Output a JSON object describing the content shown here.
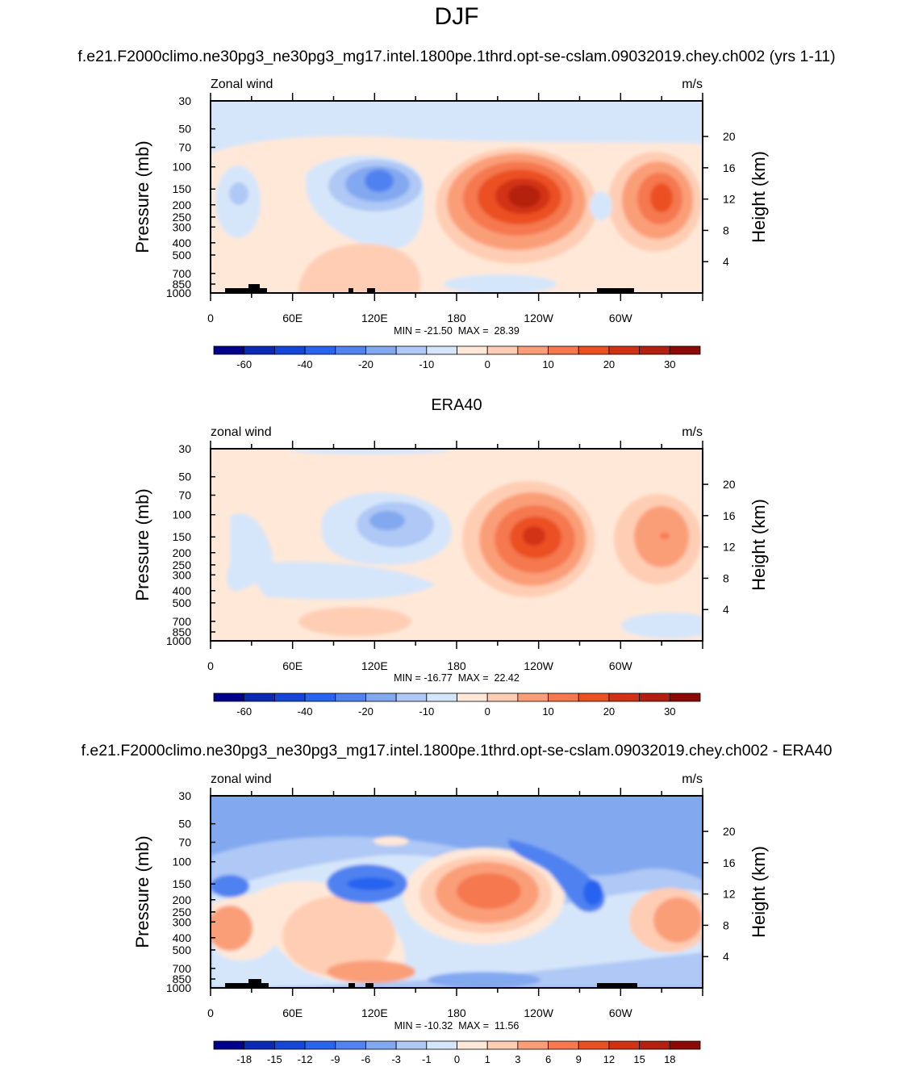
{
  "page": {
    "title": "DJF"
  },
  "colors": {
    "lbar1": [
      "#00008b",
      "#0a2ab4",
      "#1446d7",
      "#2864f0",
      "#5082f0",
      "#82a8f0",
      "#afc8f5",
      "#d6e6fa",
      "#ffe8d8",
      "#ffcdb4",
      "#fa9e78",
      "#f5784f",
      "#eb5023",
      "#d23214",
      "#b4200f",
      "#8c0a05"
    ],
    "lbar3": [
      "#00008b",
      "#0a2ab4",
      "#1446d7",
      "#2864f0",
      "#5082f0",
      "#82a8f0",
      "#afc8f5",
      "#d6e6fa",
      "#ffe8d8",
      "#ffcdb4",
      "#fa9e78",
      "#f5784f",
      "#eb5023",
      "#d23214",
      "#b4200f",
      "#8c0a05"
    ]
  },
  "chart_data": [
    {
      "type": "heatmap",
      "title": "f.e21.F2000climo.ne30pg3_ne30pg3_mg17.intel.1800pe.1thrd.opt-se-cslam.09032019.chey.ch002 (yrs 1-11)",
      "left_label": "Zonal wind",
      "right_label": "m/s",
      "ylabel": "Pressure (mb)",
      "ylabel_right": "Height (km)",
      "x_ticks": [
        "0",
        "60E",
        "120E",
        "180",
        "120W",
        "60W"
      ],
      "y_ticks": [
        "30",
        "50",
        "70",
        "100",
        "150",
        "200",
        "250",
        "300",
        "400",
        "500",
        "700",
        "850",
        "1000"
      ],
      "y_ticks_right": [
        "20",
        "16",
        "12",
        "8",
        "4"
      ],
      "stats": "MIN = -21.50  MAX =  28.39",
      "colorbar_labels": [
        "-60",
        "-40",
        "-20",
        "-10",
        "0",
        "10",
        "20",
        "30"
      ],
      "xlim": [
        0,
        360
      ],
      "ylim": [
        1000,
        30
      ]
    },
    {
      "type": "heatmap",
      "title": "ERA40",
      "left_label": "zonal wind",
      "right_label": "m/s",
      "ylabel": "Pressure (mb)",
      "ylabel_right": "Height (km)",
      "x_ticks": [
        "0",
        "60E",
        "120E",
        "180",
        "120W",
        "60W"
      ],
      "y_ticks": [
        "30",
        "50",
        "70",
        "100",
        "150",
        "200",
        "250",
        "300",
        "400",
        "500",
        "700",
        "850",
        "1000"
      ],
      "y_ticks_right": [
        "20",
        "16",
        "12",
        "8",
        "4"
      ],
      "stats": "MIN = -16.77  MAX =  22.42",
      "colorbar_labels": [
        "-60",
        "-40",
        "-20",
        "-10",
        "0",
        "10",
        "20",
        "30"
      ],
      "xlim": [
        0,
        360
      ],
      "ylim": [
        1000,
        30
      ]
    },
    {
      "type": "heatmap",
      "title": "f.e21.F2000climo.ne30pg3_ne30pg3_mg17.intel.1800pe.1thrd.opt-se-cslam.09032019.chey.ch002 - ERA40",
      "left_label": "zonal wind",
      "right_label": "m/s",
      "ylabel": "Pressure (mb)",
      "ylabel_right": "Height (km)",
      "x_ticks": [
        "0",
        "60E",
        "120E",
        "180",
        "120W",
        "60W"
      ],
      "y_ticks": [
        "30",
        "50",
        "70",
        "100",
        "150",
        "200",
        "250",
        "300",
        "400",
        "500",
        "700",
        "850",
        "1000"
      ],
      "y_ticks_right": [
        "20",
        "16",
        "12",
        "8",
        "4"
      ],
      "stats": "MIN = -10.32  MAX =  11.56",
      "colorbar_labels": [
        "-18",
        "-15",
        "-12",
        "-9",
        "-6",
        "-3",
        "-1",
        "0",
        "1",
        "3",
        "6",
        "9",
        "12",
        "15",
        "18"
      ],
      "xlim": [
        0,
        360
      ],
      "ylim": [
        1000,
        30
      ]
    }
  ]
}
